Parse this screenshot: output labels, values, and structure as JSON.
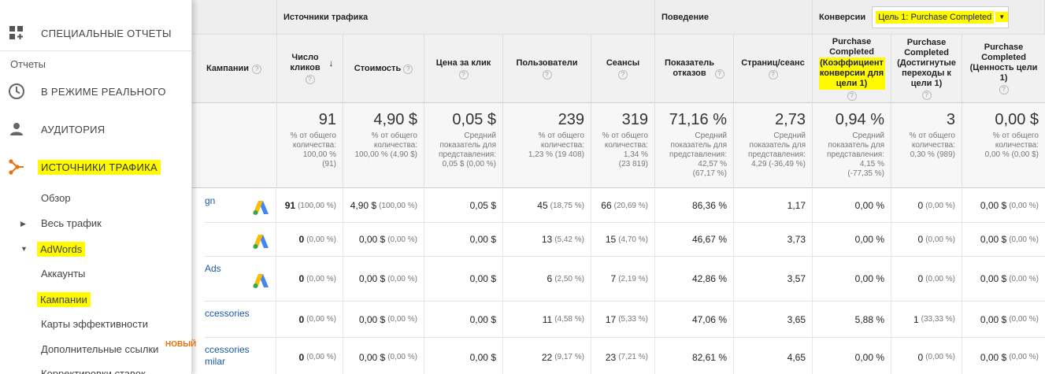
{
  "sidebar": {
    "special_reports": "СПЕЦИАЛЬНЫЕ ОТЧЕТЫ",
    "reports_header": "Отчеты",
    "realtime": "В РЕЖИМЕ РЕАЛЬНОГО",
    "audience": "АУДИТОРИЯ",
    "acquisition": "ИСТОЧНИКИ ТРАФИКА",
    "overview": "Обзор",
    "all_traffic": "Весь трафик",
    "adwords": "AdWords",
    "accounts": "Аккаунты",
    "campaigns": "Кампании",
    "treemaps": "Карты эффективности",
    "sitelinks": "Дополнительные ссылки",
    "new_badge": "НОВЫЙ",
    "bid_adjustments": "Корректировки ставок"
  },
  "groups": {
    "acquisition": "Источники трафика",
    "behavior": "Поведение",
    "conversions": "Конверсии",
    "goal_select": "Цель 1: Purchase Completed"
  },
  "headers": {
    "campaign": "Кампании",
    "clicks": "Число кликов",
    "cost": "Стоимость",
    "cpc": "Цена за клик",
    "users": "Пользователи",
    "sessions": "Сеансы",
    "bounce": "Показатель отказов",
    "pages": "Страниц/сеанс",
    "conv_rate_a": "Purchase Completed",
    "conv_rate_b": "(Коэффициент конверсии для цели 1)",
    "completions_a": "Purchase Completed",
    "completions_b": "(Достигнутые переходы к цели 1)",
    "value_a": "Purchase Completed",
    "value_b": "(Ценность цели 1)"
  },
  "totals": {
    "clicks": {
      "big": "91",
      "sub1": "% от общего",
      "sub2": "количества:",
      "sub3": "100,00 %",
      "sub4": "(91)"
    },
    "cost": {
      "big": "4,90 $",
      "sub1": "% от общего",
      "sub2": "количества:",
      "sub3": "100,00 % (4,90 $)"
    },
    "cpc": {
      "big": "0,05 $",
      "sub1": "Средний",
      "sub2": "показатель для",
      "sub3": "представления:",
      "sub4": "0,05 $ (0,00 %)"
    },
    "users": {
      "big": "239",
      "sub1": "% от общего",
      "sub2": "количества:",
      "sub3": "1,23 % (19 408)"
    },
    "sessions": {
      "big": "319",
      "sub1": "% от общего",
      "sub2": "количества:",
      "sub3": "1,34 %",
      "sub4": "(23 819)"
    },
    "bounce": {
      "big": "71,16 %",
      "sub1": "Средний",
      "sub2": "показатель для",
      "sub3": "представления:",
      "sub4": "42,57 %",
      "sub5": "(67,17 %)"
    },
    "pages": {
      "big": "2,73",
      "sub1": "Средний",
      "sub2": "показатель для",
      "sub3": "представления:",
      "sub4": "4,29 (-36,49 %)"
    },
    "conv": {
      "big": "0,94 %",
      "sub1": "Средний",
      "sub2": "показатель для",
      "sub3": "представления:",
      "sub4": "4,15 %",
      "sub5": "(-77,35 %)"
    },
    "completions": {
      "big": "3",
      "sub1": "% от общего",
      "sub2": "количества:",
      "sub3": "0,30 % (989)"
    },
    "value": {
      "big": "0,00 $",
      "sub1": "% от общего",
      "sub2": "количества:",
      "sub3": "0,00 % (0,00 $)"
    }
  },
  "rows": [
    {
      "name": "gn",
      "clicks": "91",
      "clicks_pct": "(100,00 %)",
      "cost": "4,90 $",
      "cost_pct": "(100,00 %)",
      "cpc": "0,05 $",
      "users": "45",
      "users_pct": "(18,75 %)",
      "sessions": "66",
      "sessions_pct": "(20,69 %)",
      "bounce": "86,36 %",
      "pages": "1,17",
      "conv": "0,00 %",
      "comp": "0",
      "comp_pct": "(0,00 %)",
      "value": "0,00 $",
      "value_pct": "(0,00 %)"
    },
    {
      "name": "",
      "clicks": "0",
      "clicks_pct": "(0,00 %)",
      "cost": "0,00 $",
      "cost_pct": "(0,00 %)",
      "cpc": "0,00 $",
      "users": "13",
      "users_pct": "(5,42 %)",
      "sessions": "15",
      "sessions_pct": "(4,70 %)",
      "bounce": "46,67 %",
      "pages": "3,73",
      "conv": "0,00 %",
      "comp": "0",
      "comp_pct": "(0,00 %)",
      "value": "0,00 $",
      "value_pct": "(0,00 %)"
    },
    {
      "name": "Ads",
      "clicks": "0",
      "clicks_pct": "(0,00 %)",
      "cost": "0,00 $",
      "cost_pct": "(0,00 %)",
      "cpc": "0,00 $",
      "users": "6",
      "users_pct": "(2,50 %)",
      "sessions": "7",
      "sessions_pct": "(2,19 %)",
      "bounce": "42,86 %",
      "pages": "3,57",
      "conv": "0,00 %",
      "comp": "0",
      "comp_pct": "(0,00 %)",
      "value": "0,00 $",
      "value_pct": "(0,00 %)"
    },
    {
      "name": "ccessories",
      "clicks": "0",
      "clicks_pct": "(0,00 %)",
      "cost": "0,00 $",
      "cost_pct": "(0,00 %)",
      "cpc": "0,00 $",
      "users": "11",
      "users_pct": "(4,58 %)",
      "sessions": "17",
      "sessions_pct": "(5,33 %)",
      "bounce": "47,06 %",
      "pages": "3,65",
      "conv": "5,88 %",
      "comp": "1",
      "comp_pct": "(33,33 %)",
      "value": "0,00 $",
      "value_pct": "(0,00 %)"
    },
    {
      "name": "ccessories",
      "name2": "milar",
      "clicks": "0",
      "clicks_pct": "(0,00 %)",
      "cost": "0,00 $",
      "cost_pct": "(0,00 %)",
      "cpc": "0,00 $",
      "users": "22",
      "users_pct": "(9,17 %)",
      "sessions": "23",
      "sessions_pct": "(7,21 %)",
      "bounce": "82,61 %",
      "pages": "4,65",
      "conv": "0,00 %",
      "comp": "0",
      "comp_pct": "(0,00 %)",
      "value": "0,00 $",
      "value_pct": "(0,00 %)"
    }
  ],
  "colors": {
    "highlight": "#fffa00",
    "link": "#1a5aaa",
    "orange": "#e8710a",
    "adwords_blue": "#4285f4",
    "adwords_yellow": "#fbbc04"
  }
}
